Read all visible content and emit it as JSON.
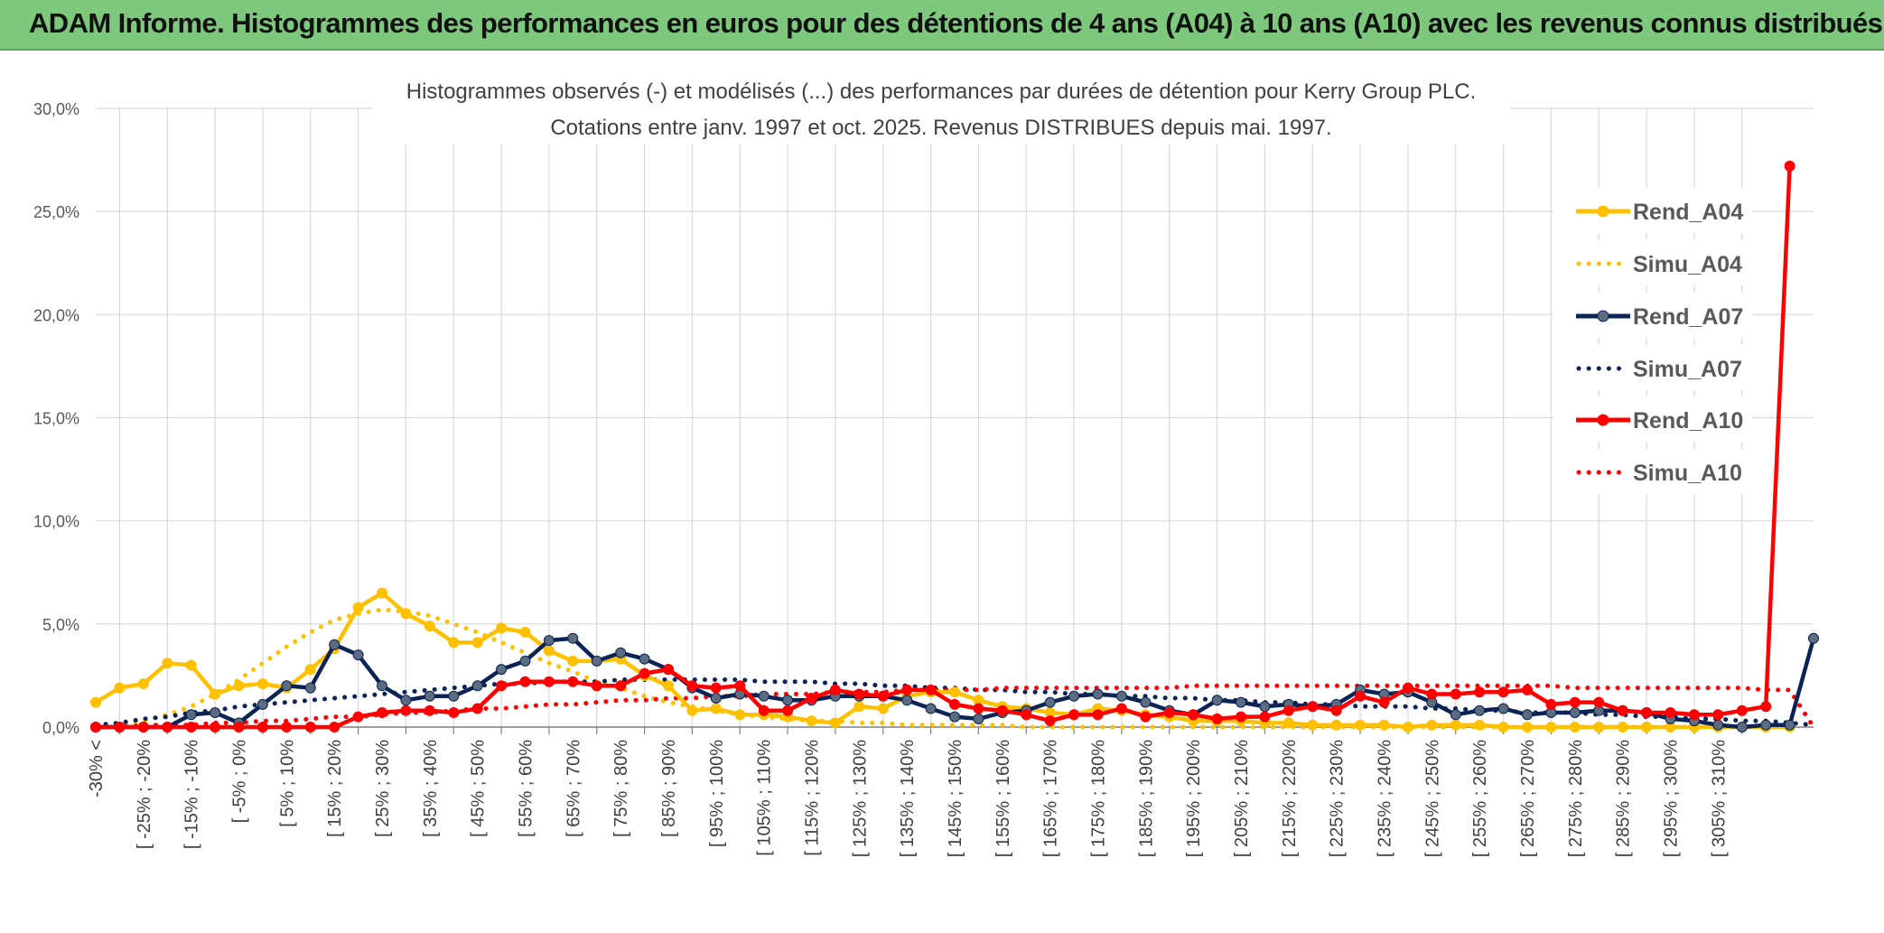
{
  "banner": {
    "title": "ADAM Informe. Histogrammes des performances en euros pour des détentions de 4 ans (A04) à 10 ans (A10) avec les revenus connus distribués"
  },
  "colors": {
    "banner_bg": "#7dc87d",
    "a04": "#ffc000",
    "a07": "#0b2356",
    "a10": "#ff0000",
    "a07_marker": "#5b6b80",
    "grid": "#d9d9d9"
  },
  "chart_data": {
    "type": "line",
    "title": "Histogrammes observés (-) et modélisés (...) des performances par durées de détention pour Kerry Group PLC.",
    "subtitle": "Cotations entre janv. 1997 et oct. 2025. Revenus DISTRIBUES depuis mai. 1997.",
    "xlabel": "",
    "ylabel": "",
    "ylim": [
      0,
      30
    ],
    "yticks": [
      "0,0%",
      "5,0%",
      "10,0%",
      "15,0%",
      "20,0%",
      "25,0%",
      "30,0%"
    ],
    "grid": true,
    "legend_position": "right",
    "tick_labels": [
      "-30% <",
      "[ -25% ; -20%",
      "[ -15% ; -10%",
      "[ -5% ; 0%",
      "[ 5% ; 10%",
      "[ 15% ; 20%",
      "[ 25% ; 30%",
      "[ 35% ; 40%",
      "[ 45% ; 50%",
      "[ 55% ; 60%",
      "[ 65% ; 70%",
      "[ 75% ; 80%",
      "[ 85% ; 90%",
      "[ 95% ; 100%",
      "[ 105% ; 110%",
      "[ 115% ; 120%",
      "[ 125% ; 130%",
      "[ 135% ; 140%",
      "[ 145% ; 150%",
      "[ 155% ; 160%",
      "[ 165% ; 170%",
      "[ 175% ; 180%",
      "[ 185% ; 190%",
      "[ 195% ; 200%",
      "[ 205% ; 210%",
      "[ 215% ; 220%",
      "[ 225% ; 230%",
      "[ 235% ; 240%",
      "[ 245% ; 250%",
      "[ 255% ; 260%",
      "[ 265% ; 270%",
      "[ 275% ; 280%",
      "[ 285% ; 290%",
      "[ 295% ; 300%",
      "[ 305% ; 310%"
    ],
    "series": [
      {
        "name": "Rend_A04",
        "style": "solid",
        "values": [
          1.2,
          1.9,
          2.1,
          3.1,
          3.0,
          1.6,
          2.0,
          2.1,
          1.9,
          2.8,
          3.8,
          5.8,
          6.5,
          5.5,
          4.9,
          4.1,
          4.1,
          4.8,
          4.6,
          3.7,
          3.2,
          3.2,
          3.3,
          2.5,
          2.0,
          0.8,
          0.9,
          0.6,
          0.6,
          0.5,
          0.3,
          0.2,
          1.0,
          0.9,
          1.5,
          1.7,
          1.7,
          1.3,
          1.0,
          0.9,
          0.7,
          0.6,
          0.9,
          0.8,
          0.6,
          0.5,
          0.3,
          0.3,
          0.3,
          0.2,
          0.2,
          0.1,
          0.1,
          0.1,
          0.1,
          0.0,
          0.1,
          0.1,
          0.1,
          0.0,
          0.0,
          0.0,
          0.0,
          0.0,
          0.0,
          0.0,
          0.0,
          0.0,
          0.0,
          0.0,
          0.0,
          0.0
        ]
      },
      {
        "name": "Simu_A04",
        "style": "dotted",
        "values": [
          0.0,
          0.1,
          0.3,
          0.6,
          1.0,
          1.6,
          2.3,
          3.1,
          3.9,
          4.6,
          5.2,
          5.5,
          5.7,
          5.6,
          5.4,
          5.0,
          4.6,
          4.1,
          3.6,
          3.1,
          2.7,
          2.2,
          1.9,
          1.5,
          1.2,
          1.0,
          0.8,
          0.6,
          0.5,
          0.4,
          0.3,
          0.3,
          0.2,
          0.2,
          0.1,
          0.1,
          0.1,
          0.1,
          0.1,
          0.0,
          0.0,
          0.0,
          0.0,
          0.0,
          0.0,
          0.0,
          0.0,
          0.0,
          0.0,
          0.0,
          0.0,
          0.0,
          0.0,
          0.0,
          0.0,
          0.0,
          0.0,
          0.0,
          0.0,
          0.0,
          0.0,
          0.0,
          0.0,
          0.0,
          0.0,
          0.0,
          0.0,
          0.0,
          0.0,
          0.0,
          0.0,
          0.0
        ]
      },
      {
        "name": "Rend_A07",
        "style": "solid",
        "values": [
          0.0,
          0.0,
          0.0,
          0.0,
          0.6,
          0.7,
          0.2,
          1.1,
          2.0,
          1.9,
          4.0,
          3.5,
          2.0,
          1.3,
          1.5,
          1.5,
          2.0,
          2.8,
          3.2,
          4.2,
          4.3,
          3.2,
          3.6,
          3.3,
          2.8,
          1.9,
          1.4,
          1.6,
          1.5,
          1.3,
          1.3,
          1.5,
          1.5,
          1.5,
          1.3,
          0.9,
          0.5,
          0.4,
          0.7,
          0.8,
          1.2,
          1.5,
          1.6,
          1.5,
          1.2,
          0.8,
          0.6,
          1.3,
          1.2,
          1.0,
          1.1,
          1.0,
          1.1,
          1.8,
          1.6,
          1.7,
          1.2,
          0.6,
          0.8,
          0.9,
          0.6,
          0.7,
          0.7,
          0.8,
          0.8,
          0.7,
          0.4,
          0.3,
          0.1,
          0.0,
          0.1,
          0.1,
          4.3
        ]
      },
      {
        "name": "Simu_A07",
        "style": "dotted",
        "values": [
          0.1,
          0.2,
          0.4,
          0.5,
          0.7,
          0.8,
          1.0,
          1.1,
          1.2,
          1.3,
          1.4,
          1.5,
          1.6,
          1.7,
          1.8,
          1.9,
          2.0,
          2.1,
          2.1,
          2.2,
          2.2,
          2.2,
          2.3,
          2.3,
          2.3,
          2.3,
          2.3,
          2.3,
          2.2,
          2.2,
          2.2,
          2.1,
          2.1,
          2.0,
          2.0,
          1.9,
          1.9,
          1.8,
          1.8,
          1.7,
          1.7,
          1.6,
          1.6,
          1.5,
          1.5,
          1.4,
          1.4,
          1.3,
          1.3,
          1.2,
          1.2,
          1.1,
          1.1,
          1.0,
          1.0,
          1.0,
          0.9,
          0.9,
          0.8,
          0.8,
          0.7,
          0.7,
          0.7,
          0.6,
          0.6,
          0.5,
          0.5,
          0.4,
          0.4,
          0.3,
          0.3,
          0.2,
          0.1
        ]
      },
      {
        "name": "Rend_A10",
        "style": "solid",
        "values": [
          0.0,
          0.0,
          0.0,
          0.0,
          0.0,
          0.0,
          0.0,
          0.0,
          0.0,
          0.0,
          0.0,
          0.5,
          0.7,
          0.8,
          0.8,
          0.7,
          0.9,
          2.0,
          2.2,
          2.2,
          2.2,
          2.0,
          2.0,
          2.6,
          2.8,
          2.0,
          1.9,
          2.0,
          0.8,
          0.8,
          1.4,
          1.8,
          1.6,
          1.5,
          1.8,
          1.8,
          1.1,
          0.9,
          0.8,
          0.6,
          0.3,
          0.6,
          0.6,
          0.9,
          0.5,
          0.7,
          0.6,
          0.4,
          0.5,
          0.5,
          0.8,
          1.0,
          0.8,
          1.5,
          1.2,
          1.9,
          1.6,
          1.6,
          1.7,
          1.7,
          1.8,
          1.1,
          1.2,
          1.2,
          0.8,
          0.7,
          0.7,
          0.6,
          0.6,
          0.8,
          1.0,
          27.2
        ]
      },
      {
        "name": "Simu_A10",
        "style": "dotted",
        "values": [
          0.0,
          0.0,
          0.1,
          0.1,
          0.1,
          0.2,
          0.2,
          0.3,
          0.3,
          0.4,
          0.5,
          0.5,
          0.6,
          0.7,
          0.7,
          0.8,
          0.9,
          0.9,
          1.0,
          1.1,
          1.1,
          1.2,
          1.3,
          1.3,
          1.4,
          1.4,
          1.5,
          1.5,
          1.6,
          1.6,
          1.6,
          1.7,
          1.7,
          1.7,
          1.8,
          1.8,
          1.8,
          1.8,
          1.9,
          1.9,
          1.9,
          1.9,
          1.9,
          1.9,
          1.9,
          1.9,
          2.0,
          2.0,
          2.0,
          2.0,
          2.0,
          2.0,
          2.0,
          2.0,
          2.0,
          2.0,
          2.0,
          2.0,
          2.0,
          2.0,
          2.0,
          2.0,
          1.9,
          1.9,
          1.9,
          1.9,
          1.9,
          1.9,
          1.9,
          1.9,
          1.8,
          1.8,
          0.0
        ]
      }
    ]
  }
}
